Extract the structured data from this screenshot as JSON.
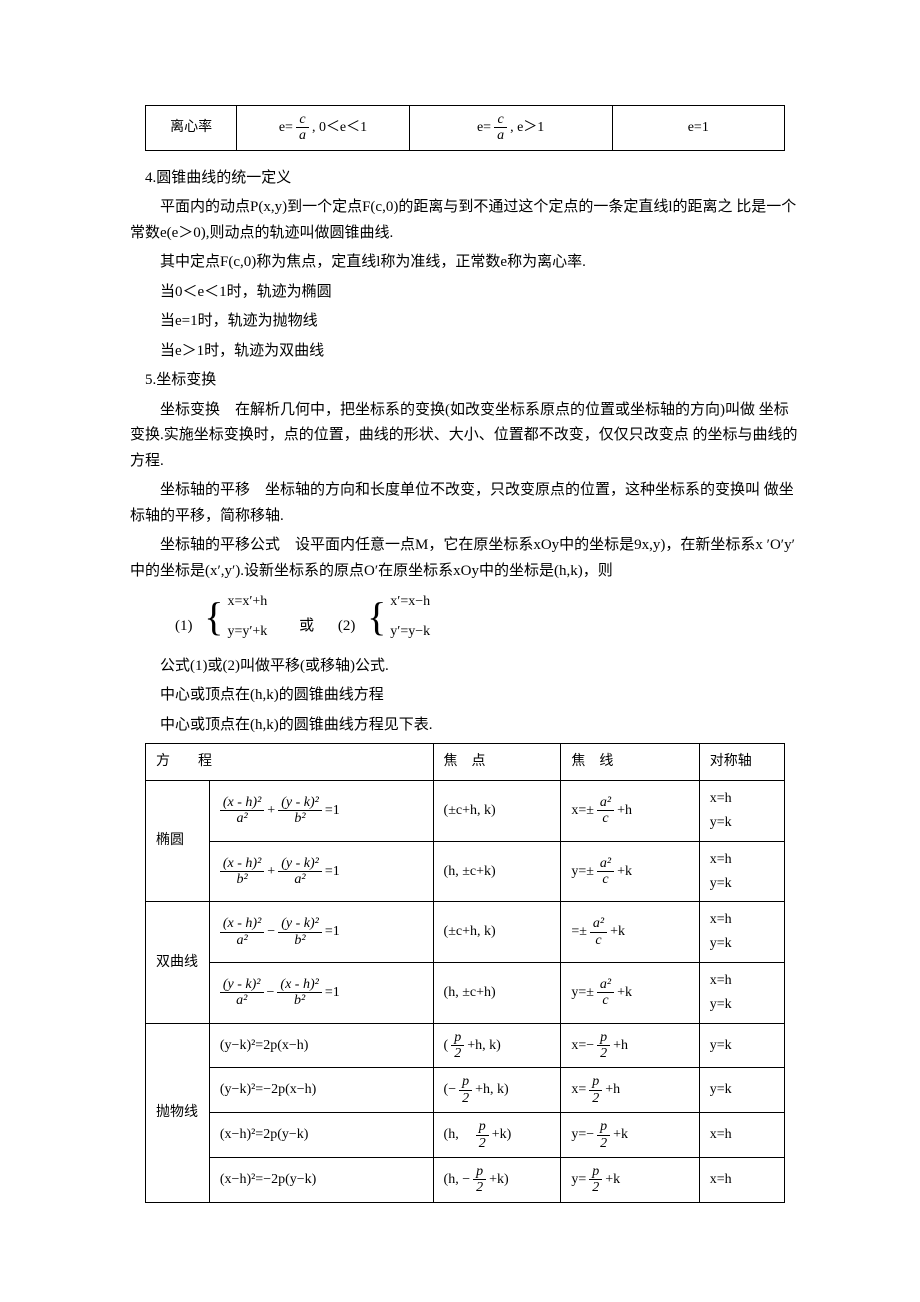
{
  "table1": {
    "row_label": "离心率",
    "cells": [
      {
        "prefix": "e=",
        "num": "c",
        "den": "a",
        "suffix": ", 0＜e＜1"
      },
      {
        "prefix": "e=",
        "num": "c",
        "den": "a",
        "suffix": ", e＞1"
      },
      {
        "text": "e=1"
      }
    ],
    "col_widths": [
      "90px",
      "170px",
      "200px",
      "170px"
    ]
  },
  "section4": {
    "heading": "4.圆锥曲线的统一定义",
    "p1": "平面内的动点P(x,y)到一个定点F(c,0)的距离与到不通过这个定点的一条定直线l的距离之 比是一个常数e(e＞0),则动点的轨迹叫做圆锥曲线.",
    "p2": "其中定点F(c,0)称为焦点，定直线l称为准线，正常数e称为离心率.",
    "p3": "当0＜e＜1时，轨迹为椭圆",
    "p4": "当e=1时，轨迹为抛物线",
    "p5": "当e＞1时，轨迹为双曲线"
  },
  "section5": {
    "heading": "5.坐标变换",
    "p1": "坐标变换　在解析几何中，把坐标系的变换(如改变坐标系原点的位置或坐标轴的方向)叫做 坐标变换.实施坐标变换时，点的位置，曲线的形状、大小、位置都不改变，仅仅只改变点 的坐标与曲线的方程.",
    "p2": "坐标轴的平移　坐标轴的方向和长度单位不改变，只改变原点的位置，这种坐标系的变换叫 做坐标轴的平移，简称移轴.",
    "p3": "坐标轴的平移公式　设平面内任意一点M，它在原坐标系xOy中的坐标是9x,y)，在新坐标系x ′O′y′中的坐标是(x′,y′).设新坐标系的原点O′在原坐标系xOy中的坐标是(h,k)，则",
    "eq1_label": "(1)",
    "eq1_a": "x=x′+h",
    "eq1_b": "y=y′+k",
    "eq_or": "或",
    "eq2_label": "(2)",
    "eq2_a": "x′=x−h",
    "eq2_b": "y′=y−k",
    "p4": "公式(1)或(2)叫做平移(或移轴)公式.",
    "p5": "中心或顶点在(h,k)的圆锥曲线方程",
    "p6": "中心或顶点在(h,k)的圆锥曲线方程见下表."
  },
  "table2": {
    "headers": [
      "方　　程",
      "焦　点",
      "焦　线",
      "对称轴"
    ],
    "groups": [
      {
        "label": "椭圆",
        "rows": [
          {
            "eq": [
              {
                "num": "(x - h)²",
                "den": "a²"
              },
              {
                "op": "+"
              },
              {
                "num": "(y - k)²",
                "den": "b²"
              },
              {
                "tail": "=1"
              }
            ],
            "focus": "(±c+h, k)",
            "directrix": {
              "pre": "x=±",
              "num": "a²",
              "den": "c",
              "post": "+h"
            },
            "axis": "x=h\ny=k"
          },
          {
            "eq": [
              {
                "num": "(x - h)²",
                "den": "b²"
              },
              {
                "op": "+"
              },
              {
                "num": "(y - k)²",
                "den": "a²"
              },
              {
                "tail": " =1"
              }
            ],
            "focus": "(h, ±c+k)",
            "directrix": {
              "pre": "y=±",
              "num": "a²",
              "den": "c",
              "post": "+k"
            },
            "axis": "x=h\ny=k"
          }
        ]
      },
      {
        "label": "双曲线",
        "rows": [
          {
            "eq": [
              {
                "num": "(x - h)²",
                "den": "a²"
              },
              {
                "op": "−"
              },
              {
                "num": "(y - k)²",
                "den": "b²"
              },
              {
                "tail": "=1"
              }
            ],
            "focus": "(±c+h, k)",
            "directrix": {
              "pre": "=±",
              "num": "a²",
              "den": "c",
              "post": "+k"
            },
            "axis": "x=h\ny=k"
          },
          {
            "eq": [
              {
                "num": "(y - k)²",
                "den": "a²"
              },
              {
                "op": "−"
              },
              {
                "num": "(x - h)²",
                "den": "b²"
              },
              {
                "tail": "=1"
              }
            ],
            "focus": "(h, ±c+h)",
            "directrix": {
              "pre": "y=±",
              "num": "a²",
              "den": "c",
              "post": "+k"
            },
            "axis": "x=h\ny=k"
          }
        ]
      },
      {
        "label": "抛物线",
        "rows": [
          {
            "eq_text": "(y−k)²=2p(x−h)",
            "focus_frac": {
              "pre": "(",
              "num": "p",
              "den": "2",
              "post": "+h, k)"
            },
            "directrix": {
              "pre": "x=−",
              "num": "p",
              "den": "2",
              "post": "+h"
            },
            "axis": "y=k"
          },
          {
            "eq_text": "(y−k)²=−2p(x−h)",
            "focus_frac": {
              "pre": "(−",
              "num": "p",
              "den": "2",
              "post": "+h, k)"
            },
            "directrix": {
              "pre": "x=",
              "num": "p",
              "den": "2",
              "post": "+h"
            },
            "axis": "y=k"
          },
          {
            "eq_text": "(x−h)²=2p(y−k)",
            "focus_frac": {
              "pre": "(h,　",
              "num": "p",
              "den": "2",
              "post": "+k)"
            },
            "directrix": {
              "pre": "y=−",
              "num": "p",
              "den": "2",
              "post": "+k"
            },
            "axis": "x=h"
          },
          {
            "eq_text": "(x−h)²=−2p(y−k)",
            "focus_frac": {
              "pre": "(h, −",
              "num": "p",
              "den": "2",
              "post": "+k)"
            },
            "directrix": {
              "pre": "y=",
              "num": "p",
              "den": "2",
              "post": "+k"
            },
            "axis": "x=h"
          }
        ]
      }
    ],
    "col_widths": [
      "60px",
      "200px",
      "120px",
      "130px",
      "80px"
    ]
  }
}
